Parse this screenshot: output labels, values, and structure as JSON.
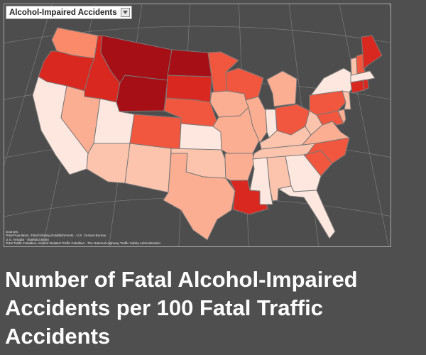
{
  "layer_select": {
    "label": "Alcohol-Impaired Accidents"
  },
  "sources": {
    "heading": "Sources:",
    "lines": [
      "Total Population, Total Drinking Establishments - U.S. Census Bureau",
      "U.S. Armada - Statistica Brain",
      "Total Traffic Fatalities, Alcohol Related Traffic Fatalities - The National Highway Traffic Safety Administration"
    ]
  },
  "caption": "Number of Fatal Alcohol-Impaired Accidents per 100 Fatal Traffic Accidents",
  "colors": {
    "background": "#4f4f4f",
    "very_light": "#fde7de",
    "light": "#fcc4ad",
    "light_mid": "#fcae92",
    "mid": "#fb8a6a",
    "strong": "#f0573e",
    "darker": "#d9281f",
    "darkest": "#a50f15"
  },
  "states": [
    {
      "code": "WA",
      "color": "#fb8a6a"
    },
    {
      "code": "OR",
      "color": "#d9281f"
    },
    {
      "code": "CA",
      "color": "#fde7de"
    },
    {
      "code": "ID",
      "color": "#d9281f"
    },
    {
      "code": "NV",
      "color": "#fcae92"
    },
    {
      "code": "UT",
      "color": "#fde7de"
    },
    {
      "code": "AZ",
      "color": "#fcc4ad"
    },
    {
      "code": "MT",
      "color": "#a50f15"
    },
    {
      "code": "WY",
      "color": "#a50f15"
    },
    {
      "code": "CO",
      "color": "#f0573e"
    },
    {
      "code": "NM",
      "color": "#fcc4ad"
    },
    {
      "code": "ND",
      "color": "#a50f15"
    },
    {
      "code": "SD",
      "color": "#d9281f"
    },
    {
      "code": "NE",
      "color": "#f0573e"
    },
    {
      "code": "KS",
      "color": "#fde7de"
    },
    {
      "code": "OK",
      "color": "#fcc4ad"
    },
    {
      "code": "TX",
      "color": "#fcae92"
    },
    {
      "code": "MN",
      "color": "#f0573e"
    },
    {
      "code": "IA",
      "color": "#fcae92"
    },
    {
      "code": "MO",
      "color": "#fcae92"
    },
    {
      "code": "AR",
      "color": "#fcae92"
    },
    {
      "code": "LA",
      "color": "#d9281f"
    },
    {
      "code": "WI",
      "color": "#f0573e"
    },
    {
      "code": "IL",
      "color": "#fcae92"
    },
    {
      "code": "MI",
      "color": "#fcae92"
    },
    {
      "code": "IN",
      "color": "#fde7de"
    },
    {
      "code": "OH",
      "color": "#f0573e"
    },
    {
      "code": "KY",
      "color": "#fcc4ad"
    },
    {
      "code": "TN",
      "color": "#fcc4ad"
    },
    {
      "code": "MS",
      "color": "#fde7de"
    },
    {
      "code": "AL",
      "color": "#fcc4ad"
    },
    {
      "code": "GA",
      "color": "#fde7de"
    },
    {
      "code": "FL",
      "color": "#fde7de"
    },
    {
      "code": "SC",
      "color": "#f0573e"
    },
    {
      "code": "NC",
      "color": "#f0573e"
    },
    {
      "code": "VA",
      "color": "#fcae92"
    },
    {
      "code": "WV",
      "color": "#fcc4ad"
    },
    {
      "code": "MD",
      "color": "#f0573e"
    },
    {
      "code": "DE",
      "color": "#fcae92"
    },
    {
      "code": "PA",
      "color": "#f0573e"
    },
    {
      "code": "NJ",
      "color": "#fcc4ad"
    },
    {
      "code": "NY",
      "color": "#fde7de"
    },
    {
      "code": "CT",
      "color": "#d9281f"
    },
    {
      "code": "RI",
      "color": "#d9281f"
    },
    {
      "code": "MA",
      "color": "#fde7de"
    },
    {
      "code": "VT",
      "color": "#fcc4ad"
    },
    {
      "code": "NH",
      "color": "#f0573e"
    },
    {
      "code": "ME",
      "color": "#d9281f"
    }
  ]
}
